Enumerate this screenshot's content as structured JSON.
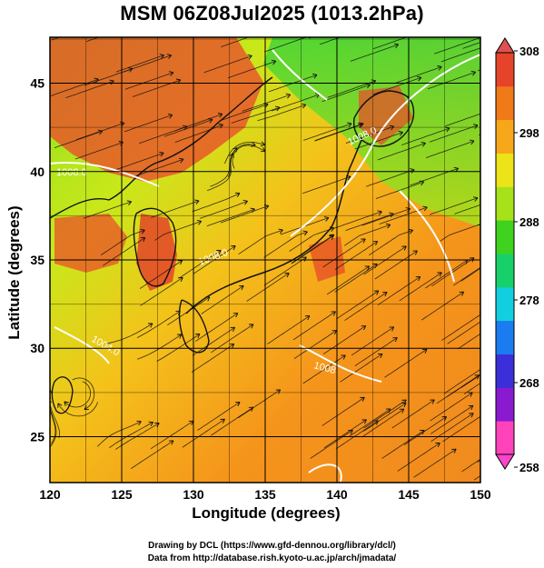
{
  "title": "MSM 06Z08Jul2025 (1013.2hPa)",
  "axes": {
    "xlabel": "Longitude (degrees)",
    "ylabel": "Latitude  (degrees)",
    "xticks": [
      "120",
      "125",
      "130",
      "135",
      "140",
      "145",
      "150"
    ],
    "yticks": [
      "25",
      "30",
      "35",
      "40",
      "45"
    ]
  },
  "colorbar": {
    "max_label": "308",
    "ticks": [
      "298",
      "288",
      "278",
      "268"
    ],
    "min_label": "258",
    "colors": [
      "#ff44bb",
      "#8a1ad0",
      "#3a2fd8",
      "#1a7cf0",
      "#12cfe0",
      "#17d06a",
      "#3fd21e",
      "#a6e11a",
      "#ece418",
      "#f7a81a",
      "#f07a18",
      "#e6442a"
    ]
  },
  "contour_labels": [
    "1008.0",
    "1008.0",
    "1008.0",
    "1004.0",
    "1008"
  ],
  "credits": {
    "line1": "Drawing by DCL (https://www.gfd-dennou.org/library/dcl/)",
    "line2": "Data from http://database.rish.kyoto-u.ac.jp/arch/jmadata/"
  }
}
